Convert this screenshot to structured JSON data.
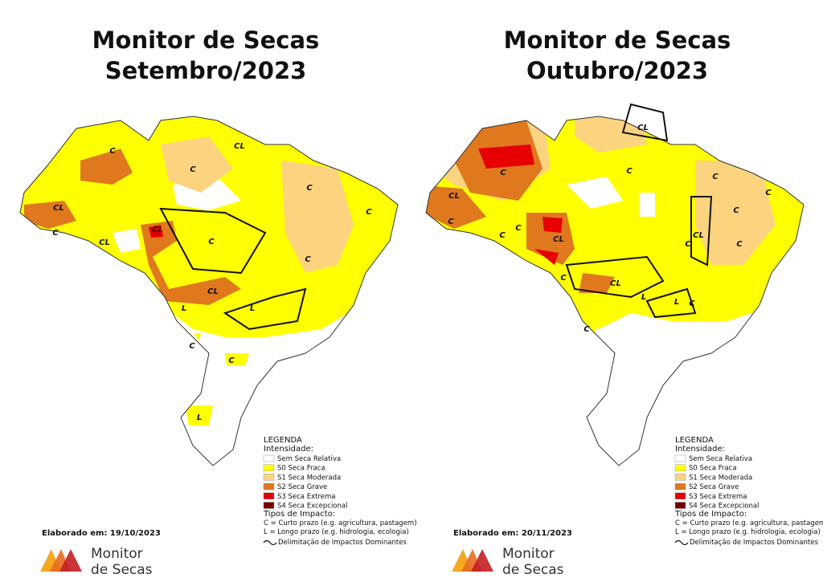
{
  "panels": [
    {
      "title": [
        "Monitor de Secas",
        "Setembro/2023"
      ],
      "region_labels": [
        "C",
        "C",
        "CL",
        "C",
        "C",
        "CL",
        "C",
        "CL",
        "CL",
        "C",
        "C",
        "CL",
        "L",
        "L",
        "C",
        "C",
        "L"
      ],
      "legend": {
        "heading": "LEGENDA",
        "intensity_heading": "Intensidade:",
        "items": [
          {
            "label": "Sem Seca Relativa",
            "color": "#ffffff"
          },
          {
            "label": "S0 Seca Fraca",
            "color": "#ffff00"
          },
          {
            "label": "S1 Seca Moderada",
            "color": "#fcd37f"
          },
          {
            "label": "S2 Seca Grave",
            "color": "#e0781e"
          },
          {
            "label": "S3 Seca Extrema",
            "color": "#e60000"
          },
          {
            "label": "S4 Seca Excepcional",
            "color": "#730000"
          }
        ],
        "impact_heading": "Tipos de Impacto:",
        "impacts": [
          "C = Curto prazo (e.g. agricultura, pastagem)",
          "L = Longo prazo (e.g. hidrologia, ecologia)"
        ],
        "delimitation": "Delimitação de Impactos Dominantes"
      },
      "date": "Elaborado em: 19/10/2023",
      "logo": [
        "Monitor",
        "de Secas"
      ]
    },
    {
      "title": [
        "Monitor de Secas",
        "Outubro/2023"
      ],
      "region_labels": [
        "C",
        "CL",
        "C",
        "C",
        "C",
        "CL",
        "CL",
        "C",
        "C",
        "C",
        "C",
        "CL",
        "C",
        "C",
        "C",
        "CL",
        "L",
        "L",
        "C",
        "C"
      ],
      "legend": {
        "heading": "LEGENDA",
        "intensity_heading": "Intensidade:",
        "items": [
          {
            "label": "Sem Seca Relativa",
            "color": "#ffffff"
          },
          {
            "label": "S0 Seca Fraca",
            "color": "#ffff00"
          },
          {
            "label": "S1 Seca Moderada",
            "color": "#fcd37f"
          },
          {
            "label": "S2 Seca Grave",
            "color": "#e0781e"
          },
          {
            "label": "S3 Seca Extrema",
            "color": "#e60000"
          },
          {
            "label": "S4 Seca Excepcional",
            "color": "#730000"
          }
        ],
        "impact_heading": "Tipos de Impacto:",
        "impacts": [
          "C = Curto prazo (e.g. agricultura, pastagem)",
          "L = Longo prazo (e.g. hidrologia, ecologia)"
        ],
        "delimitation": "Delimitação de Impactos Dominantes"
      },
      "date": "Elaborado em: 20/11/2023",
      "logo": [
        "Monitor",
        "de Secas"
      ]
    }
  ]
}
